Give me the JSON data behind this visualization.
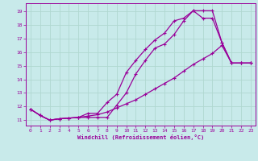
{
  "xlabel": "Windchill (Refroidissement éolien,°C)",
  "bg_color": "#c8eaea",
  "grid_color": "#b0d8d0",
  "line_color": "#990099",
  "xlim": [
    -0.5,
    23.5
  ],
  "ylim": [
    10.6,
    19.6
  ],
  "xticks": [
    0,
    1,
    2,
    3,
    4,
    5,
    6,
    7,
    8,
    9,
    10,
    11,
    12,
    13,
    14,
    15,
    16,
    17,
    18,
    19,
    20,
    21,
    22,
    23
  ],
  "yticks": [
    11,
    12,
    13,
    14,
    15,
    16,
    17,
    18,
    19
  ],
  "line1_x": [
    0,
    1,
    2,
    3,
    4,
    5,
    6,
    7,
    8,
    9,
    10,
    11,
    12,
    13,
    14,
    15,
    16,
    17,
    18,
    19,
    20,
    21,
    22,
    23
  ],
  "line1_y": [
    11.8,
    11.35,
    11.0,
    11.1,
    11.15,
    11.2,
    11.2,
    11.2,
    11.2,
    12.1,
    13.0,
    14.4,
    15.4,
    16.3,
    16.6,
    17.3,
    18.3,
    19.05,
    19.05,
    19.05,
    16.7,
    15.2,
    15.2,
    15.2
  ],
  "line2_x": [
    0,
    1,
    2,
    3,
    4,
    5,
    6,
    7,
    8,
    9,
    10,
    11,
    12,
    13,
    14,
    15,
    16,
    17,
    18,
    19,
    20,
    21,
    22,
    23
  ],
  "line2_y": [
    11.8,
    11.35,
    11.0,
    11.1,
    11.15,
    11.2,
    11.5,
    11.5,
    12.3,
    12.9,
    14.5,
    15.4,
    16.2,
    16.9,
    17.4,
    18.3,
    18.5,
    19.05,
    18.5,
    18.5,
    16.7,
    15.2,
    15.2,
    15.2
  ],
  "line3_x": [
    0,
    1,
    2,
    3,
    4,
    5,
    6,
    7,
    8,
    9,
    10,
    11,
    12,
    13,
    14,
    15,
    16,
    17,
    18,
    19,
    20,
    21,
    22,
    23
  ],
  "line3_y": [
    11.8,
    11.35,
    11.0,
    11.1,
    11.15,
    11.2,
    11.3,
    11.4,
    11.6,
    11.9,
    12.2,
    12.5,
    12.9,
    13.3,
    13.7,
    14.1,
    14.6,
    15.1,
    15.5,
    15.9,
    16.5,
    15.2,
    15.2,
    15.2
  ]
}
